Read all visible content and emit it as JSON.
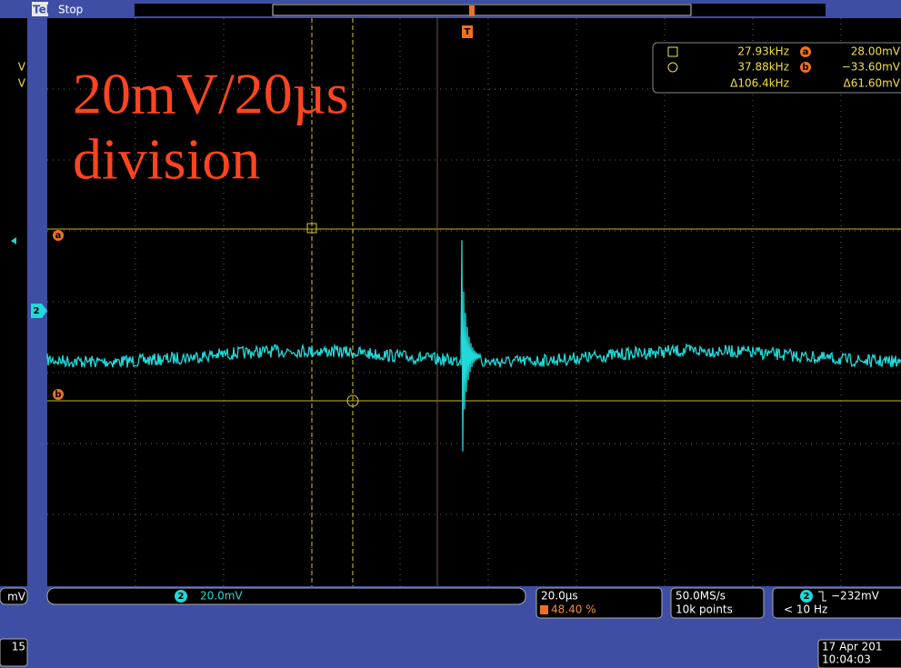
{
  "header": {
    "brand": "Tek",
    "status": "Stop"
  },
  "overlay": {
    "line1": "20mV/20µs",
    "line2": "division"
  },
  "readout": {
    "cursor1_freq": "27.93kHz",
    "cursor_a": "28.00mV",
    "cursor2_freq": "37.88kHz",
    "cursor_b": "−33.60mV",
    "delta_freq": "Δ106.4kHz",
    "delta_v": "Δ61.60mV"
  },
  "markers": {
    "a": "a",
    "b": "b",
    "trigger": "T",
    "channel": "2"
  },
  "left_panel": {
    "fragments": [
      "V",
      "V",
      "mV",
      "15"
    ]
  },
  "bottom": {
    "channel": {
      "number": "2",
      "scale": "20.0mV"
    },
    "timebase": {
      "scale": "20.0µs",
      "position": "48.40 %"
    },
    "acquisition": {
      "rate": "50.0MS/s",
      "length": "10k points"
    },
    "trigger": {
      "channel": "2",
      "level": "−232mV",
      "filter": "< 10 Hz"
    },
    "datetime": {
      "date": "17 Apr 201",
      "time": "10:04:03"
    }
  }
}
